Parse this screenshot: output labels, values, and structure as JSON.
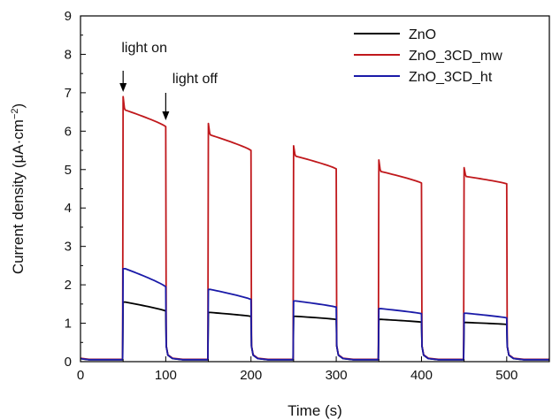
{
  "chart_data": {
    "type": "line",
    "title": "",
    "xlabel": "Time (s)",
    "ylabel_main": "Current density (μA·cm",
    "ylabel_sup": "−2",
    "ylabel_tail": ")",
    "xlim": [
      0,
      550
    ],
    "ylim": [
      0,
      9
    ],
    "xticks": [
      0,
      100,
      200,
      300,
      400,
      500
    ],
    "yticks": [
      0,
      1,
      2,
      3,
      4,
      5,
      6,
      7,
      8,
      9
    ],
    "grid": false,
    "legend_position": "top-right",
    "cycles": {
      "on_times": [
        50,
        150,
        250,
        350,
        450
      ],
      "off_times": [
        100,
        200,
        300,
        400,
        500
      ]
    },
    "series": [
      {
        "name": "ZnO",
        "color": "#000000",
        "baseline": 0.05,
        "cycles": [
          {
            "start": 1.55,
            "end": 1.32
          },
          {
            "start": 1.28,
            "end": 1.18
          },
          {
            "start": 1.18,
            "end": 1.1
          },
          {
            "start": 1.1,
            "end": 1.03
          },
          {
            "start": 1.02,
            "end": 0.97
          }
        ]
      },
      {
        "name": "ZnO_3CD_mw",
        "color": "#c0181c",
        "baseline": 0.06,
        "cycles": [
          {
            "peak": 6.9,
            "start": 6.55,
            "end": 6.12
          },
          {
            "peak": 6.2,
            "start": 5.9,
            "end": 5.5
          },
          {
            "peak": 5.62,
            "start": 5.35,
            "end": 5.02
          },
          {
            "peak": 5.25,
            "start": 4.95,
            "end": 4.65
          },
          {
            "peak": 5.05,
            "start": 4.82,
            "end": 4.63
          }
        ]
      },
      {
        "name": "ZnO_3CD_ht",
        "color": "#1a1aa8",
        "baseline": 0.05,
        "cycles": [
          {
            "start": 2.42,
            "end": 1.95
          },
          {
            "start": 1.88,
            "end": 1.62
          },
          {
            "start": 1.58,
            "end": 1.42
          },
          {
            "start": 1.38,
            "end": 1.25
          },
          {
            "start": 1.26,
            "end": 1.14
          }
        ]
      }
    ],
    "annotations": [
      {
        "text": "light on",
        "x": 50
      },
      {
        "text": "light off",
        "x": 100
      }
    ]
  }
}
